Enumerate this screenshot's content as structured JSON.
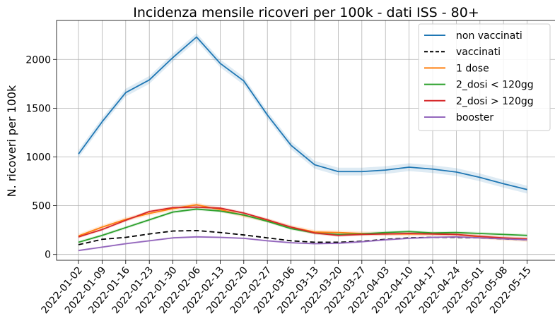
{
  "chart_data": {
    "type": "line",
    "title": "Incidenza mensile ricoveri per 100k - dati ISS - 80+",
    "xlabel": "",
    "ylabel": "N. ricoveri per 100k",
    "ylim": [
      -60,
      2400
    ],
    "yticks": [
      "0",
      "500",
      "1000",
      "1500",
      "2000"
    ],
    "ytick_values": [
      0,
      500,
      1000,
      1500,
      2000
    ],
    "grid": true,
    "legend_position": "top-right",
    "x": [
      "2022-01-02",
      "2022-01-09",
      "2022-01-16",
      "2022-01-23",
      "2022-01-30",
      "2022-02-06",
      "2022-02-13",
      "2022-02-20",
      "2022-02-27",
      "2022-03-06",
      "2022-03-13",
      "2022-03-20",
      "2022-03-27",
      "2022-04-03",
      "2022-04-10",
      "2022-04-17",
      "2022-04-24",
      "2022-05-01",
      "2022-05-08",
      "2022-05-15"
    ],
    "series": [
      {
        "name": "non vaccinati",
        "color": "#1f77b4",
        "dash": "",
        "values": [
          1030,
          1360,
          1660,
          1790,
          2020,
          2230,
          1960,
          1780,
          1430,
          1120,
          920,
          850,
          850,
          865,
          895,
          875,
          845,
          790,
          725,
          665
        ],
        "band": 40
      },
      {
        "name": "vaccinati",
        "color": "#000000",
        "dash": "7,4",
        "values": [
          100,
          155,
          175,
          210,
          240,
          245,
          225,
          200,
          170,
          140,
          125,
          125,
          135,
          155,
          170,
          175,
          175,
          170,
          160,
          150
        ],
        "band": 0
      },
      {
        "name": "1 dose",
        "color": "#ff7f0e",
        "dash": "",
        "values": [
          190,
          280,
          360,
          420,
          470,
          510,
          460,
          400,
          350,
          280,
          230,
          225,
          215,
          210,
          210,
          210,
          205,
          180,
          165,
          150
        ],
        "band": 22
      },
      {
        "name": "2_dosi < 120gg",
        "color": "#2ca02c",
        "dash": "",
        "values": [
          125,
          195,
          275,
          355,
          435,
          465,
          445,
          405,
          340,
          265,
          220,
          205,
          210,
          225,
          235,
          220,
          225,
          215,
          205,
          195
        ],
        "band": 15
      },
      {
        "name": "2_dosi > 120gg",
        "color": "#d62728",
        "dash": "",
        "values": [
          180,
          255,
          350,
          440,
          480,
          485,
          475,
          425,
          355,
          280,
          220,
          195,
          205,
          210,
          215,
          210,
          205,
          185,
          170,
          160
        ],
        "band": 15
      },
      {
        "name": "booster",
        "color": "#9467bd",
        "dash": "",
        "values": [
          40,
          75,
          110,
          140,
          170,
          180,
          175,
          165,
          140,
          120,
          110,
          115,
          130,
          150,
          165,
          175,
          180,
          170,
          160,
          150
        ],
        "band": 10
      }
    ]
  }
}
